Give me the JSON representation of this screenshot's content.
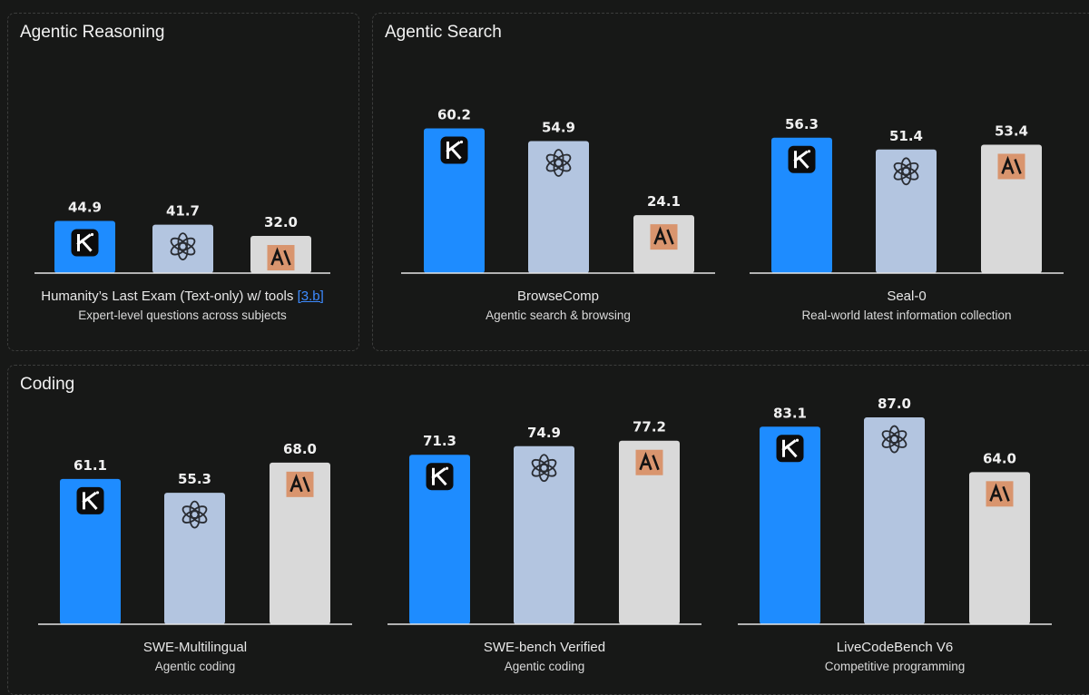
{
  "sections": [
    {
      "title": "Agentic Reasoning"
    },
    {
      "title": "Agentic Search"
    },
    {
      "title": "Coding"
    }
  ],
  "colors": {
    "kimi": "#1e8cff",
    "openai": "#b3c5e0",
    "anthropic": "#d9d9d9",
    "baseline": "#e5e5e5",
    "anthropic_logo_bg": "#d9956e"
  },
  "models": [
    {
      "key": "kimi",
      "icon": "kimi-logo-icon"
    },
    {
      "key": "openai",
      "icon": "openai-logo-icon"
    },
    {
      "key": "anthropic",
      "icon": "anthropic-logo-icon"
    }
  ],
  "chart_data": [
    {
      "type": "bar",
      "section": "Agentic Reasoning",
      "title": "Humanity’s Last Exam (Text-only) w/ tools",
      "reference": "[3.b]",
      "subtitle": "Expert-level questions across subjects",
      "categories": [
        "Kimi",
        "OpenAI",
        "Anthropic"
      ],
      "values": [
        44.9,
        41.7,
        32.0
      ],
      "labels": [
        "44.9",
        "41.7",
        "32.0"
      ],
      "ylim": [
        0,
        100
      ]
    },
    {
      "type": "bar",
      "section": "Agentic Search",
      "title": "BrowseComp",
      "subtitle": "Agentic search & browsing",
      "categories": [
        "Kimi",
        "OpenAI",
        "Anthropic"
      ],
      "values": [
        60.2,
        54.9,
        24.1
      ],
      "labels": [
        "60.2",
        "54.9",
        "24.1"
      ],
      "ylim": [
        0,
        100
      ]
    },
    {
      "type": "bar",
      "section": "Agentic Search",
      "title": "Seal-0",
      "subtitle": "Real-world latest information collection",
      "categories": [
        "Kimi",
        "OpenAI",
        "Anthropic"
      ],
      "values": [
        56.3,
        51.4,
        53.4
      ],
      "labels": [
        "56.3",
        "51.4",
        "53.4"
      ],
      "ylim": [
        0,
        100
      ]
    },
    {
      "type": "bar",
      "section": "Coding",
      "title": "SWE-Multilingual",
      "subtitle": "Agentic coding",
      "categories": [
        "Kimi",
        "OpenAI",
        "Anthropic"
      ],
      "values": [
        61.1,
        55.3,
        68.0
      ],
      "labels": [
        "61.1",
        "55.3",
        "68.0"
      ],
      "ylim": [
        0,
        100
      ]
    },
    {
      "type": "bar",
      "section": "Coding",
      "title": "SWE-bench Verified",
      "subtitle": "Agentic coding",
      "categories": [
        "Kimi",
        "OpenAI",
        "Anthropic"
      ],
      "values": [
        71.3,
        74.9,
        77.2
      ],
      "labels": [
        "71.3",
        "74.9",
        "77.2"
      ],
      "ylim": [
        0,
        100
      ]
    },
    {
      "type": "bar",
      "section": "Coding",
      "title": "LiveCodeBench V6",
      "subtitle": "Competitive programming",
      "categories": [
        "Kimi",
        "OpenAI",
        "Anthropic"
      ],
      "values": [
        83.1,
        87.0,
        64.0
      ],
      "labels": [
        "83.1",
        "87.0",
        "64.0"
      ],
      "ylim": [
        0,
        100
      ]
    }
  ]
}
